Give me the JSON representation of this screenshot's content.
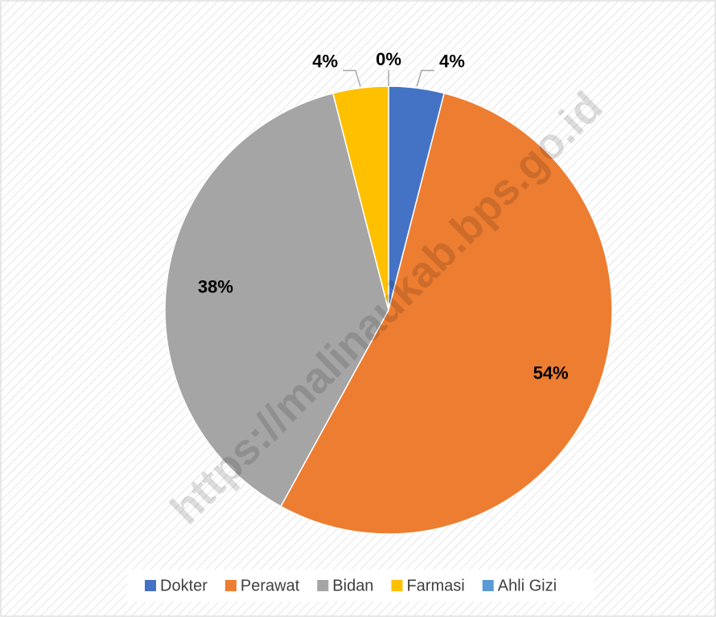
{
  "chart_data": {
    "type": "pie",
    "categories": [
      "Dokter",
      "Perawat",
      "Bidan",
      "Farmasi",
      "Ahli Gizi"
    ],
    "values": [
      4,
      54,
      38,
      4,
      0
    ],
    "value_labels": [
      "4%",
      "54%",
      "38%",
      "4%",
      "0%"
    ],
    "colors": [
      "#4472c4",
      "#ed7d31",
      "#a5a5a5",
      "#ffc000",
      "#5b9bd5"
    ],
    "legend": "bottom",
    "watermark": "https://malinaukab.bps.go.id"
  }
}
